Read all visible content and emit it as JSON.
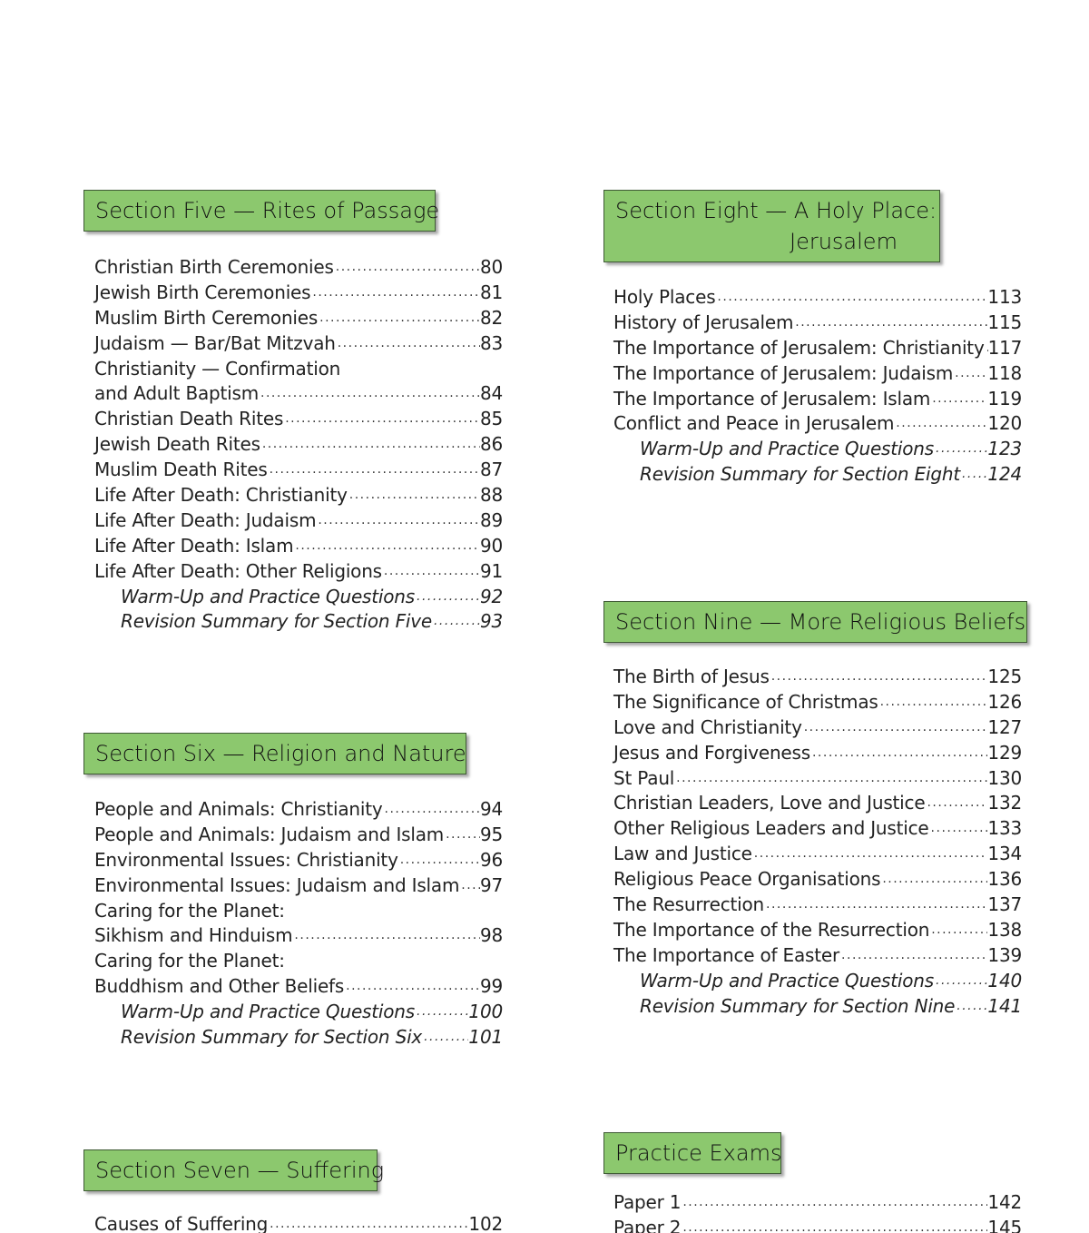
{
  "colors": {
    "header_fill": "#8cc86e",
    "header_border": "#3f5a35"
  },
  "sections": [
    {
      "title": "Section Five — Rites of Passage",
      "entries": [
        {
          "title": "Christian Birth Ceremonies",
          "page": "80"
        },
        {
          "title": "Jewish Birth Ceremonies",
          "page": "81"
        },
        {
          "title": "Muslim Birth Ceremonies",
          "page": "82"
        },
        {
          "title": "Judaism — Bar/Bat Mitzvah",
          "page": "83"
        },
        {
          "title": "Christianity — Confirmation",
          "page": ""
        },
        {
          "title": "and Adult Baptism",
          "page": "84"
        },
        {
          "title": "Christian Death Rites",
          "page": "85"
        },
        {
          "title": "Jewish Death Rites",
          "page": "86"
        },
        {
          "title": "Muslim Death Rites",
          "page": "87"
        },
        {
          "title": "Life After Death: Christianity",
          "page": "88"
        },
        {
          "title": "Life After Death: Judaism",
          "page": "89"
        },
        {
          "title": "Life After Death: Islam",
          "page": "90"
        },
        {
          "title": "Life After Death: Other Religions",
          "page": "91"
        },
        {
          "title": "Warm-Up and Practice Questions",
          "page": "92",
          "italic": true
        },
        {
          "title": "Revision Summary for Section Five",
          "page": "93",
          "italic": true
        }
      ]
    },
    {
      "title": "Section Six — Religion and Nature",
      "entries": [
        {
          "title": "People and Animals: Christianity",
          "page": "94"
        },
        {
          "title": "People and Animals: Judaism and Islam",
          "page": "95"
        },
        {
          "title": "Environmental Issues: Christianity",
          "page": "96"
        },
        {
          "title": "Environmental Issues: Judaism and Islam",
          "page": "97"
        },
        {
          "title": "Caring for the Planet:",
          "page": ""
        },
        {
          "title": "Sikhism and Hinduism",
          "page": "98"
        },
        {
          "title": "Caring for the Planet:",
          "page": ""
        },
        {
          "title": "Buddhism and Other Beliefs",
          "page": "99"
        },
        {
          "title": "Warm-Up and Practice Questions",
          "page": "100",
          "italic": true
        },
        {
          "title": "Revision Summary for Section Six",
          "page": "101",
          "italic": true
        }
      ]
    },
    {
      "title": "Section Seven — Suffering",
      "entries": [
        {
          "title": "Causes of Suffering",
          "page": "102"
        }
      ]
    },
    {
      "title_line1": "Section Eight — A Holy Place:",
      "title_line2": "Jerusalem",
      "entries": [
        {
          "title": "Holy Places",
          "page": "113"
        },
        {
          "title": "History of Jerusalem",
          "page": "115"
        },
        {
          "title": "The Importance of Jerusalem: Christianity",
          "page": "117"
        },
        {
          "title": "The Importance of Jerusalem: Judaism",
          "page": "118"
        },
        {
          "title": "The Importance of Jerusalem: Islam",
          "page": "119"
        },
        {
          "title": "Conflict and Peace in Jerusalem",
          "page": "120"
        },
        {
          "title": "Warm-Up and Practice Questions",
          "page": "123",
          "italic": true
        },
        {
          "title": "Revision Summary for Section Eight",
          "page": "124",
          "italic": true
        }
      ]
    },
    {
      "title": "Section Nine — More Religious Beliefs",
      "entries": [
        {
          "title": "The Birth of Jesus",
          "page": "125"
        },
        {
          "title": "The Significance of Christmas",
          "page": "126"
        },
        {
          "title": "Love and Christianity",
          "page": "127"
        },
        {
          "title": "Jesus and Forgiveness",
          "page": "129"
        },
        {
          "title": "St Paul",
          "page": "130"
        },
        {
          "title": "Christian Leaders, Love and Justice",
          "page": "132"
        },
        {
          "title": "Other Religious Leaders and Justice",
          "page": "133"
        },
        {
          "title": "Law and Justice",
          "page": "134"
        },
        {
          "title": "Religious Peace Organisations",
          "page": "136"
        },
        {
          "title": "The Resurrection",
          "page": "137"
        },
        {
          "title": "The Importance of the Resurrection",
          "page": "138"
        },
        {
          "title": "The Importance of Easter",
          "page": "139"
        },
        {
          "title": "Warm-Up and Practice Questions",
          "page": "140",
          "italic": true
        },
        {
          "title": "Revision Summary for Section Nine",
          "page": "141",
          "italic": true
        }
      ]
    },
    {
      "title": "Practice Exams",
      "entries": [
        {
          "title": "Paper 1",
          "page": "142"
        },
        {
          "title": "Paper 2",
          "page": "145"
        }
      ]
    }
  ]
}
